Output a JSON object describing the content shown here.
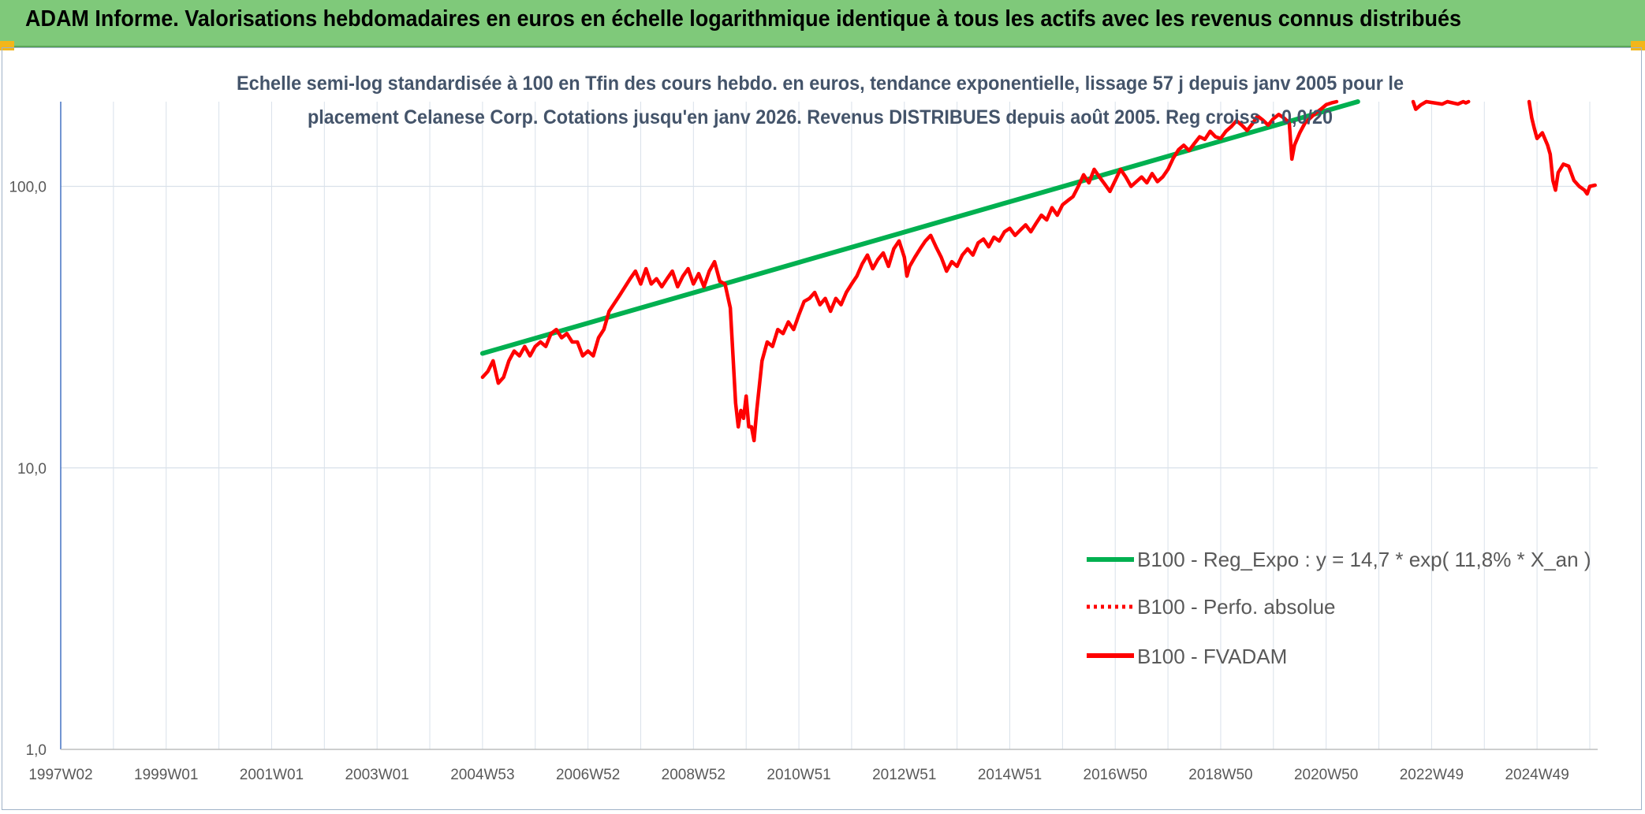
{
  "banner": {
    "title": "ADAM Informe. Valorisations hebdomadaires en euros en échelle logarithmique identique à tous les actifs avec les revenus connus distribués"
  },
  "colors": {
    "banner": "#7fc97a",
    "corner": "#f3b61a",
    "trend": "#00b050",
    "price": "#ff0000",
    "grid": "#d9e1ea",
    "axis": "#4472c4"
  },
  "chart_data": {
    "type": "line",
    "title_lines": [
      "Echelle semi-log standardisée à 100 en Tfin des cours hebdo. en euros, tendance exponentielle, lissage 57 j depuis janv 2005 pour le",
      "placement Celanese Corp. Cotations jusqu'en janv 2026. Revenus DISTRIBUES depuis août 2005. Reg croiss. : 0,0/20"
    ],
    "y_scale": "log",
    "ylim": [
      1,
      200
    ],
    "y_ticks": [
      "1,0",
      "10,0",
      "100,0"
    ],
    "xlim": [
      1997.0,
      2026.15
    ],
    "x_ticks": [
      {
        "label": "1997W02",
        "x": 1997.0
      },
      {
        "label": "1999W01",
        "x": 1999.0
      },
      {
        "label": "2001W01",
        "x": 2001.0
      },
      {
        "label": "2003W01",
        "x": 2003.0
      },
      {
        "label": "2004W53",
        "x": 2005.0
      },
      {
        "label": "2006W52",
        "x": 2007.0
      },
      {
        "label": "2008W52",
        "x": 2009.0
      },
      {
        "label": "2010W51",
        "x": 2011.0
      },
      {
        "label": "2012W51",
        "x": 2013.0
      },
      {
        "label": "2014W51",
        "x": 2015.0
      },
      {
        "label": "2016W50",
        "x": 2017.0
      },
      {
        "label": "2018W50",
        "x": 2019.0
      },
      {
        "label": "2020W50",
        "x": 2021.0
      },
      {
        "label": "2022W49",
        "x": 2023.0
      },
      {
        "label": "2024W49",
        "x": 2025.0
      }
    ],
    "legend_position": "bottom-right",
    "series": [
      {
        "name": "B100 - Reg_Expo : y = 14,7 * exp( 11,8% *  X_an )",
        "style": "solid-green",
        "points": [
          [
            2005.0,
            25.5
          ],
          [
            2021.6,
            200
          ]
        ]
      },
      {
        "name": "B100 - Perfo. absolue",
        "style": "dotted-red",
        "points": []
      },
      {
        "name": "B100 - FVADAM",
        "style": "solid-red",
        "points": [
          [
            2005.0,
            21
          ],
          [
            2005.1,
            22
          ],
          [
            2005.2,
            24
          ],
          [
            2005.3,
            20
          ],
          [
            2005.4,
            21
          ],
          [
            2005.5,
            24
          ],
          [
            2005.6,
            26
          ],
          [
            2005.7,
            25
          ],
          [
            2005.8,
            27
          ],
          [
            2005.9,
            25
          ],
          [
            2006.0,
            27
          ],
          [
            2006.1,
            28
          ],
          [
            2006.2,
            27
          ],
          [
            2006.3,
            30
          ],
          [
            2006.4,
            31
          ],
          [
            2006.5,
            29
          ],
          [
            2006.6,
            30
          ],
          [
            2006.7,
            28
          ],
          [
            2006.8,
            28
          ],
          [
            2006.9,
            25
          ],
          [
            2007.0,
            26
          ],
          [
            2007.1,
            25
          ],
          [
            2007.2,
            29
          ],
          [
            2007.3,
            31
          ],
          [
            2007.4,
            36
          ],
          [
            2007.6,
            41
          ],
          [
            2007.8,
            47
          ],
          [
            2007.9,
            50
          ],
          [
            2008.0,
            45
          ],
          [
            2008.1,
            51
          ],
          [
            2008.2,
            45
          ],
          [
            2008.3,
            47
          ],
          [
            2008.4,
            44
          ],
          [
            2008.5,
            47
          ],
          [
            2008.6,
            50
          ],
          [
            2008.7,
            44
          ],
          [
            2008.8,
            48
          ],
          [
            2008.9,
            51
          ],
          [
            2009.0,
            45
          ],
          [
            2009.1,
            49
          ],
          [
            2009.2,
            44
          ],
          [
            2009.3,
            50
          ],
          [
            2009.4,
            54
          ],
          [
            2009.5,
            46
          ],
          [
            2009.6,
            45
          ],
          [
            2009.7,
            37
          ],
          [
            2009.75,
            25
          ],
          [
            2009.8,
            17
          ],
          [
            2009.85,
            14
          ],
          [
            2009.9,
            16
          ],
          [
            2009.95,
            15
          ],
          [
            2010.0,
            18
          ],
          [
            2010.05,
            14
          ],
          [
            2010.1,
            14
          ],
          [
            2010.15,
            12.5
          ],
          [
            2010.2,
            16
          ],
          [
            2010.3,
            24
          ],
          [
            2010.4,
            28
          ],
          [
            2010.5,
            27
          ],
          [
            2010.6,
            31
          ],
          [
            2010.7,
            30
          ],
          [
            2010.8,
            33
          ],
          [
            2010.9,
            31
          ],
          [
            2011.0,
            35
          ],
          [
            2011.1,
            39
          ],
          [
            2011.2,
            40
          ],
          [
            2011.3,
            42
          ],
          [
            2011.4,
            38
          ],
          [
            2011.5,
            40
          ],
          [
            2011.6,
            36
          ],
          [
            2011.7,
            40
          ],
          [
            2011.8,
            38
          ],
          [
            2011.9,
            42
          ],
          [
            2012.0,
            45
          ],
          [
            2012.1,
            48
          ],
          [
            2012.2,
            53
          ],
          [
            2012.3,
            57
          ],
          [
            2012.4,
            51
          ],
          [
            2012.5,
            55
          ],
          [
            2012.6,
            58
          ],
          [
            2012.7,
            52
          ],
          [
            2012.8,
            60
          ],
          [
            2012.9,
            64
          ],
          [
            2013.0,
            56
          ],
          [
            2013.05,
            48
          ],
          [
            2013.1,
            52
          ],
          [
            2013.2,
            56
          ],
          [
            2013.3,
            60
          ],
          [
            2013.4,
            64
          ],
          [
            2013.5,
            67
          ],
          [
            2013.6,
            61
          ],
          [
            2013.7,
            56
          ],
          [
            2013.8,
            50
          ],
          [
            2013.9,
            54
          ],
          [
            2014.0,
            52
          ],
          [
            2014.1,
            57
          ],
          [
            2014.2,
            60
          ],
          [
            2014.3,
            57
          ],
          [
            2014.4,
            63
          ],
          [
            2014.5,
            65
          ],
          [
            2014.6,
            61
          ],
          [
            2014.7,
            66
          ],
          [
            2014.8,
            64
          ],
          [
            2014.9,
            69
          ],
          [
            2015.0,
            71
          ],
          [
            2015.1,
            67
          ],
          [
            2015.2,
            70
          ],
          [
            2015.3,
            73
          ],
          [
            2015.4,
            69
          ],
          [
            2015.5,
            74
          ],
          [
            2015.6,
            79
          ],
          [
            2015.7,
            76
          ],
          [
            2015.8,
            84
          ],
          [
            2015.9,
            79
          ],
          [
            2016.0,
            86
          ],
          [
            2016.1,
            89
          ],
          [
            2016.2,
            92
          ],
          [
            2016.3,
            100
          ],
          [
            2016.4,
            110
          ],
          [
            2016.5,
            103
          ],
          [
            2016.6,
            115
          ],
          [
            2016.7,
            108
          ],
          [
            2016.8,
            102
          ],
          [
            2016.9,
            96
          ],
          [
            2017.0,
            105
          ],
          [
            2017.1,
            115
          ],
          [
            2017.2,
            108
          ],
          [
            2017.3,
            100
          ],
          [
            2017.4,
            104
          ],
          [
            2017.5,
            108
          ],
          [
            2017.6,
            103
          ],
          [
            2017.7,
            111
          ],
          [
            2017.8,
            104
          ],
          [
            2017.9,
            108
          ],
          [
            2018.0,
            115
          ],
          [
            2018.1,
            126
          ],
          [
            2018.2,
            135
          ],
          [
            2018.3,
            140
          ],
          [
            2018.4,
            134
          ],
          [
            2018.5,
            142
          ],
          [
            2018.6,
            150
          ],
          [
            2018.7,
            147
          ],
          [
            2018.8,
            157
          ],
          [
            2018.9,
            150
          ],
          [
            2019.0,
            148
          ],
          [
            2019.1,
            157
          ],
          [
            2019.2,
            163
          ],
          [
            2019.3,
            171
          ],
          [
            2019.4,
            165
          ],
          [
            2019.5,
            158
          ],
          [
            2019.6,
            167
          ],
          [
            2019.7,
            178
          ],
          [
            2019.8,
            172
          ],
          [
            2019.9,
            165
          ],
          [
            2020.0,
            174
          ],
          [
            2020.1,
            180
          ],
          [
            2020.2,
            175
          ],
          [
            2020.3,
            168
          ],
          [
            2020.35,
            125
          ],
          [
            2020.4,
            140
          ],
          [
            2020.5,
            155
          ],
          [
            2020.6,
            168
          ],
          [
            2020.7,
            175
          ],
          [
            2020.8,
            182
          ],
          [
            2020.9,
            188
          ],
          [
            2021.0,
            195
          ],
          [
            2021.1,
            198
          ],
          [
            2021.2,
            200
          ]
        ]
      },
      {
        "name": "",
        "style": "solid-red",
        "points": [
          [
            2022.65,
            200
          ],
          [
            2022.7,
            188
          ],
          [
            2022.8,
            195
          ],
          [
            2022.9,
            200
          ],
          [
            2023.2,
            196
          ],
          [
            2023.3,
            200
          ],
          [
            2023.5,
            196
          ],
          [
            2023.6,
            200
          ],
          [
            2023.65,
            198
          ],
          [
            2023.7,
            200
          ]
        ]
      },
      {
        "name": "",
        "style": "solid-red",
        "points": [
          [
            2024.85,
            200
          ],
          [
            2024.9,
            175
          ],
          [
            2024.95,
            160
          ],
          [
            2025.0,
            148
          ],
          [
            2025.1,
            155
          ],
          [
            2025.2,
            140
          ],
          [
            2025.25,
            130
          ],
          [
            2025.3,
            105
          ],
          [
            2025.35,
            97
          ],
          [
            2025.4,
            112
          ],
          [
            2025.5,
            120
          ],
          [
            2025.6,
            118
          ],
          [
            2025.7,
            105
          ],
          [
            2025.8,
            100
          ],
          [
            2025.9,
            97
          ],
          [
            2025.95,
            94
          ],
          [
            2026.0,
            100
          ],
          [
            2026.1,
            101
          ]
        ]
      }
    ]
  }
}
